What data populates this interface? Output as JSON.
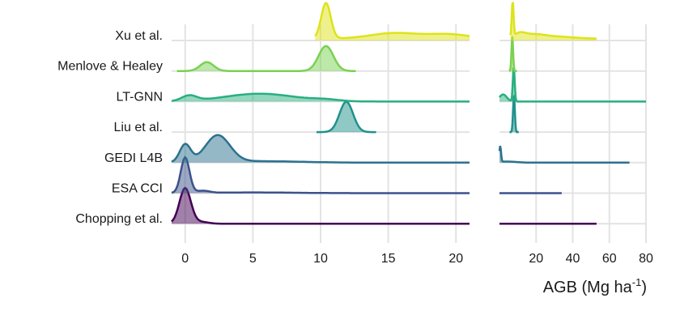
{
  "chart_data": {
    "type": "area",
    "subtype": "ridgeline-density",
    "xlabel": "AGB (Mg ha",
    "xlabel_sup": "-1",
    "xlabel_close": ")",
    "grid": true,
    "panels": [
      {
        "name": "left",
        "xlim": [
          -1,
          21
        ],
        "ticks": [
          0,
          5,
          10,
          15,
          20
        ],
        "tick_labels": [
          "0",
          "5",
          "10",
          "15",
          "20"
        ]
      },
      {
        "name": "right",
        "xlim": [
          0,
          80
        ],
        "ticks": [
          20,
          40,
          60,
          80
        ],
        "tick_labels": [
          "20",
          "40",
          "60",
          "80"
        ]
      }
    ],
    "categories": [
      "Xu et al.",
      "Menlove & Healey",
      "LT-GNN",
      "Liu et al.",
      "GEDI L4B",
      "ESA CCI",
      "Chopping et al."
    ],
    "series": [
      {
        "name": "Xu et al.",
        "color": "#dde318",
        "left": {
          "range": [
            9.6,
            21
          ],
          "baseline": 0.05,
          "peaks": [
            [
              10.4,
              0.35,
              1.0
            ],
            [
              15.5,
              1.8,
              0.16
            ],
            [
              19.5,
              1.5,
              0.12
            ]
          ]
        },
        "right": {
          "range": [
            6,
            53
          ],
          "baseline": 0.05,
          "peaks": [
            [
              7.2,
              0.5,
              1.0
            ],
            [
              11,
              3,
              0.12
            ],
            [
              18,
              6,
              0.1
            ],
            [
              30,
              10,
              0.06
            ]
          ]
        }
      },
      {
        "name": "Menlove & Healey",
        "color": "#7ad151",
        "left": {
          "range": [
            -0.6,
            12.6
          ],
          "baseline": 0,
          "peaks": [
            [
              1.6,
              0.5,
              0.25
            ],
            [
              10.4,
              0.55,
              0.7
            ]
          ]
        },
        "right": {
          "range": [
            5.5,
            9.5
          ],
          "baseline": 0,
          "peaks": [
            [
              7.0,
              0.45,
              0.95
            ]
          ]
        }
      },
      {
        "name": "LT-GNN",
        "color": "#29af7f",
        "left": {
          "range": [
            -1,
            21
          ],
          "baseline": 0,
          "peaks": [
            [
              0.3,
              0.55,
              0.15
            ],
            [
              5.5,
              2.6,
              0.22
            ],
            [
              10.4,
              1.0,
              0.04
            ]
          ]
        },
        "right": {
          "range": [
            0,
            80
          ],
          "baseline": 0,
          "peaks": [
            [
              2,
              2,
              0.2
            ],
            [
              7.8,
              0.5,
              1.0
            ]
          ]
        }
      },
      {
        "name": "Liu et al.",
        "color": "#21918c",
        "left": {
          "range": [
            9.7,
            14.1
          ],
          "baseline": 0,
          "peaks": [
            [
              11.9,
              0.5,
              0.85
            ]
          ]
        },
        "right": {
          "range": [
            5.5,
            10.5
          ],
          "baseline": 0,
          "peaks": [
            [
              7.9,
              0.5,
              1.0
            ]
          ]
        }
      },
      {
        "name": "GEDI L4B",
        "color": "#2c728e",
        "left": {
          "range": [
            -1,
            21
          ],
          "baseline": 0,
          "peaks": [
            [
              0.0,
              0.4,
              0.5
            ],
            [
              2.4,
              0.9,
              0.75
            ],
            [
              5.5,
              3,
              0.04
            ]
          ]
        },
        "right": {
          "range": [
            0,
            71
          ],
          "baseline": 0,
          "peaks": [
            [
              0.4,
              0.45,
              0.45
            ],
            [
              4,
              5,
              0.03
            ]
          ]
        }
      },
      {
        "name": "ESA CCI",
        "color": "#3b528b",
        "left": {
          "range": [
            -1,
            21
          ],
          "baseline": 0,
          "peaks": [
            [
              0.0,
              0.32,
              1.0
            ],
            [
              1.3,
              0.5,
              0.06
            ],
            [
              5,
              3,
              0.02
            ]
          ]
        },
        "right": {
          "range": [
            0,
            34
          ],
          "baseline": 0,
          "peaks": []
        }
      },
      {
        "name": "Chopping et al.",
        "color": "#440154",
        "left": {
          "range": [
            -1,
            21
          ],
          "baseline": 0,
          "peaks": [
            [
              0.0,
              0.42,
              1.0
            ],
            [
              1.2,
              0.5,
              0.05
            ]
          ]
        },
        "right": {
          "range": [
            0,
            53
          ],
          "baseline": 0,
          "peaks": []
        }
      }
    ]
  }
}
